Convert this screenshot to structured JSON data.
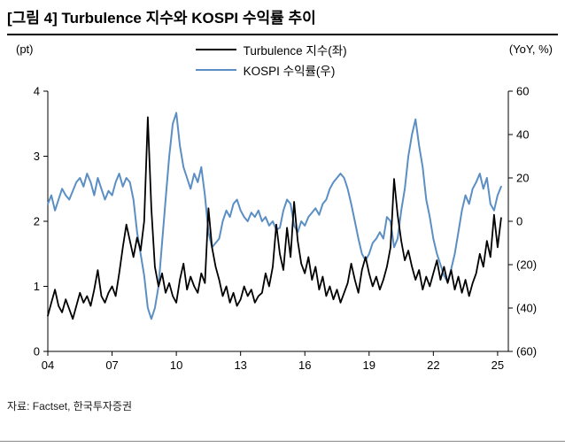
{
  "header": {
    "title": "[그림 4] Turbulence 지수와 KOSPI 수익률 추이"
  },
  "footer": {
    "source": "자료: Factset,  한국투자증권"
  },
  "chart_data": {
    "type": "line",
    "title": "[그림 4] Turbulence 지수와 KOSPI 수익률 추이",
    "x_start_year": 2004,
    "x_step_years": 0.1666667,
    "x_range": [
      2004,
      2025.5
    ],
    "x_tick_labels": [
      "04",
      "07",
      "10",
      "13",
      "16",
      "19",
      "22",
      "25"
    ],
    "x_tick_years": [
      2004,
      2007,
      2010,
      2013,
      2016,
      2019,
      2022,
      2025
    ],
    "left_axis": {
      "label": "(pt)",
      "min": 0,
      "max": 4,
      "ticks": [
        0,
        1,
        2,
        3,
        4
      ],
      "tick_labels": [
        "0",
        "1",
        "2",
        "3",
        "4"
      ]
    },
    "right_axis": {
      "label": "(YoY,  %)",
      "min": -60,
      "max": 60,
      "ticks": [
        60,
        40,
        20,
        0,
        -20,
        -40,
        -60
      ],
      "tick_labels": [
        "60",
        "40",
        "20",
        "0",
        "(20)",
        "(40)",
        "(60)"
      ]
    },
    "grid": false,
    "legend_position": "top-center",
    "series": [
      {
        "name": "Turbulence 지수(좌)",
        "axis": "left",
        "color": "#000000",
        "values": [
          0.55,
          0.75,
          0.95,
          0.7,
          0.6,
          0.8,
          0.65,
          0.5,
          0.7,
          0.9,
          0.75,
          0.85,
          0.7,
          0.95,
          1.25,
          0.85,
          0.75,
          0.9,
          1.0,
          0.85,
          1.2,
          1.6,
          1.95,
          1.7,
          1.45,
          1.75,
          1.55,
          2.0,
          3.6,
          2.2,
          1.3,
          1.0,
          1.2,
          0.9,
          1.05,
          0.85,
          0.75,
          1.1,
          1.35,
          0.95,
          1.15,
          1.0,
          0.9,
          1.2,
          1.05,
          2.2,
          1.6,
          1.3,
          1.1,
          0.85,
          1.0,
          0.75,
          0.9,
          0.7,
          0.8,
          1.0,
          0.85,
          0.95,
          0.75,
          0.85,
          0.9,
          1.2,
          1.0,
          1.3,
          1.95,
          1.5,
          1.25,
          1.9,
          1.45,
          2.3,
          1.7,
          1.35,
          1.2,
          1.45,
          1.1,
          1.3,
          0.95,
          1.15,
          0.85,
          1.0,
          0.8,
          0.95,
          0.75,
          0.9,
          1.05,
          1.35,
          1.1,
          0.9,
          1.25,
          1.45,
          1.2,
          1.0,
          1.15,
          0.95,
          1.1,
          1.3,
          1.6,
          2.65,
          2.1,
          1.7,
          1.4,
          1.55,
          1.3,
          1.1,
          1.25,
          0.95,
          1.15,
          1.0,
          1.2,
          1.4,
          1.1,
          1.3,
          1.05,
          1.25,
          0.95,
          1.15,
          0.9,
          1.1,
          0.85,
          1.05,
          1.2,
          1.5,
          1.3,
          1.7,
          1.45,
          2.1,
          1.6,
          2.05
        ]
      },
      {
        "name": "KOSPI 수익률(우)",
        "axis": "right",
        "color": "#5b8fc4",
        "values": [
          8,
          12,
          5,
          10,
          15,
          12,
          10,
          14,
          18,
          20,
          16,
          22,
          18,
          12,
          20,
          15,
          10,
          14,
          12,
          18,
          22,
          16,
          20,
          18,
          10,
          -5,
          -15,
          -25,
          -40,
          -45,
          -40,
          -30,
          -10,
          10,
          30,
          45,
          50,
          35,
          25,
          20,
          15,
          22,
          18,
          25,
          12,
          -5,
          -12,
          -10,
          -8,
          0,
          5,
          2,
          8,
          10,
          5,
          2,
          0,
          4,
          2,
          5,
          0,
          2,
          -2,
          0,
          -4,
          -3,
          5,
          10,
          8,
          -2,
          -5,
          0,
          -2,
          2,
          4,
          6,
          3,
          8,
          10,
          15,
          18,
          20,
          22,
          20,
          15,
          8,
          0,
          -8,
          -15,
          -18,
          -15,
          -10,
          -8,
          -5,
          -8,
          2,
          0,
          -12,
          -8,
          5,
          15,
          30,
          40,
          47,
          35,
          25,
          10,
          2,
          -8,
          -15,
          -20,
          -25,
          -28,
          -22,
          -15,
          -5,
          5,
          12,
          8,
          15,
          18,
          22,
          15,
          20,
          8,
          5,
          12,
          16
        ]
      }
    ]
  }
}
